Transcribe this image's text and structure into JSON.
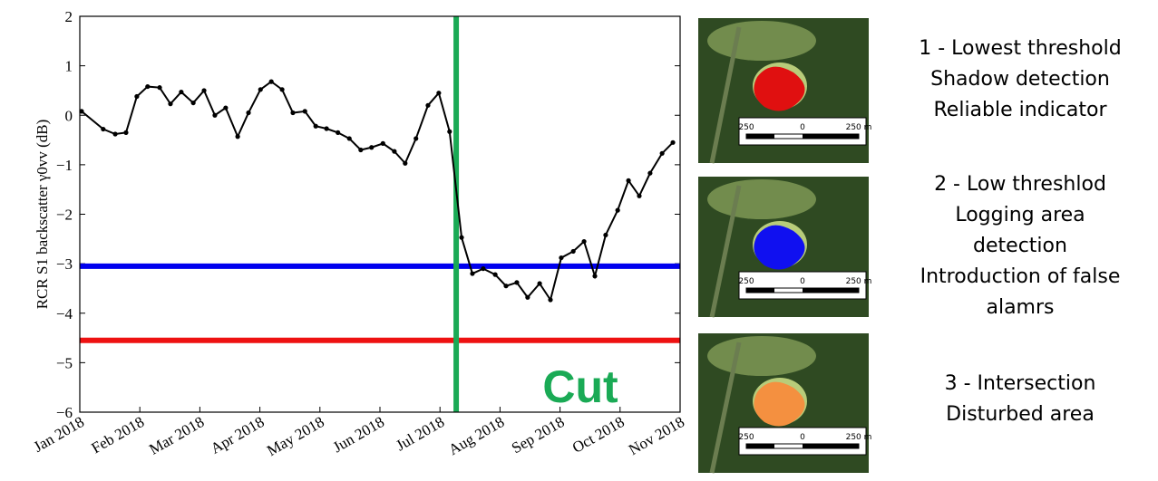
{
  "chart_data": {
    "type": "line",
    "y_label": "RCR S1 backscatter γ0vv (dB)",
    "annotation": "Cut",
    "x": [
      0.03,
      0.39,
      0.59,
      0.77,
      0.95,
      1.13,
      1.33,
      1.51,
      1.69,
      1.89,
      2.07,
      2.25,
      2.43,
      2.63,
      2.81,
      3.01,
      3.19,
      3.37,
      3.55,
      3.75,
      3.93,
      4.11,
      4.3,
      4.49,
      4.68,
      4.86,
      5.05,
      5.24,
      5.42,
      5.6,
      5.8,
      5.98,
      6.16,
      6.36,
      6.54,
      6.72,
      6.92,
      7.1,
      7.28,
      7.46,
      7.66,
      7.84,
      8.02,
      8.22,
      8.4,
      8.58,
      8.76,
      8.96,
      9.14,
      9.32,
      9.5,
      9.7,
      9.88
    ],
    "series": [
      {
        "color": "#000000",
        "values": [
          0.08,
          -0.28,
          -0.38,
          -0.35,
          0.38,
          0.58,
          0.56,
          0.23,
          0.47,
          0.25,
          0.5,
          0.0,
          0.15,
          -0.43,
          0.05,
          0.52,
          0.68,
          0.52,
          0.05,
          0.08,
          -0.22,
          -0.27,
          -0.35,
          -0.47,
          -0.7,
          -0.65,
          -0.57,
          -0.73,
          -0.97,
          -0.47,
          0.2,
          0.45,
          -0.33,
          -2.47,
          -3.2,
          -3.1,
          -3.22,
          -3.45,
          -3.38,
          -3.68,
          -3.4,
          -3.73,
          -2.88,
          -2.75,
          -2.55,
          -3.25,
          -2.42,
          -1.92,
          -1.32,
          -1.63,
          -1.17,
          -0.77,
          -0.55
        ]
      }
    ],
    "hlines": [
      {
        "value": -3.05,
        "color": "#0000ee"
      },
      {
        "value": -4.55,
        "color": "#ee1111"
      }
    ],
    "vline": {
      "value": 6.27,
      "color": "#1aaa55"
    },
    "xlim": [
      0,
      10
    ],
    "xticks": [
      {
        "value": 0,
        "label": "Jan 2018"
      },
      {
        "value": 1,
        "label": "Feb 2018"
      },
      {
        "value": 2,
        "label": "Mar 2018"
      },
      {
        "value": 3,
        "label": "Apr 2018"
      },
      {
        "value": 4,
        "label": "May 2018"
      },
      {
        "value": 5,
        "label": "Jun 2018"
      },
      {
        "value": 6,
        "label": "Jul 2018"
      },
      {
        "value": 7,
        "label": "Aug 2018"
      },
      {
        "value": 8,
        "label": "Sep 2018"
      },
      {
        "value": 9,
        "label": "Oct 2018"
      },
      {
        "value": 10,
        "label": "Nov 2018"
      }
    ],
    "ylim": [
      -6,
      2
    ],
    "yticks": [
      2,
      1,
      0,
      {
        "value": -1,
        "label": "−1"
      },
      {
        "value": -2,
        "label": "−2"
      },
      {
        "value": -3,
        "label": "−3"
      },
      {
        "value": -4,
        "label": "−4"
      },
      {
        "value": -5,
        "label": "−5"
      },
      {
        "value": -6,
        "label": "−6"
      }
    ]
  },
  "panels": [
    {
      "scale_labels": [
        "250",
        "0",
        "250 m"
      ],
      "caption": [
        "1 - Lowest threshold",
        "Shadow detection",
        "Reliable indicator"
      ]
    },
    {
      "scale_labels": [
        "250",
        "0",
        "250 m"
      ],
      "caption": [
        "2 - Low threshlod",
        "Logging area",
        "detection",
        "Introduction of false",
        "alamrs"
      ]
    },
    {
      "scale_labels": [
        "250",
        "0",
        "250 m"
      ],
      "caption": [
        "3 - Intersection",
        "Disturbed area"
      ]
    }
  ]
}
